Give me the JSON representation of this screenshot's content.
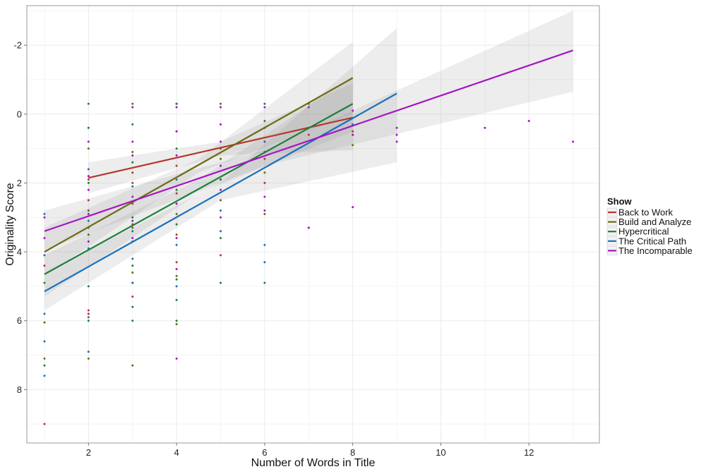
{
  "chart_data": {
    "type": "scatter",
    "title": "",
    "xlabel": "Number of Words in Title",
    "ylabel": "Originality Score",
    "xlim": [
      0.6,
      13.6
    ],
    "ylim": [
      9.55,
      -3.15
    ],
    "y_reversed": true,
    "x_ticks": [
      2,
      4,
      6,
      8,
      10,
      12
    ],
    "y_ticks": [
      -2,
      0,
      2,
      4,
      6,
      8
    ],
    "x_tick_labels": [
      "2",
      "4",
      "6",
      "8",
      "10",
      "12"
    ],
    "y_tick_labels": [
      "-2",
      "0",
      "2",
      "4",
      "6",
      "8"
    ],
    "grid": true,
    "legend": {
      "title": "Show",
      "position": "right",
      "entries": [
        "Back to Work",
        "Build and Analyze",
        "Hypercritical",
        "The Critical Path",
        "The Incomparable"
      ]
    },
    "series": [
      {
        "name": "Back to Work",
        "color": "#B5372D",
        "fit": {
          "x_start": 2,
          "x_end": 8,
          "y_start": 1.85,
          "y_end": 0.1
        },
        "confidence_band": [
          {
            "x": 2,
            "lower": 1.4,
            "upper": 2.3
          },
          {
            "x": 5,
            "lower": 0.8,
            "upper": 1.2
          },
          {
            "x": 8,
            "lower": -0.9,
            "upper": 1.05
          }
        ],
        "points": [
          [
            1,
            4.4
          ],
          [
            1,
            9.0
          ],
          [
            2,
            5.7
          ],
          [
            2,
            2.5
          ],
          [
            2,
            1.9
          ],
          [
            3,
            1.7
          ],
          [
            3,
            2.0
          ],
          [
            3,
            3.2
          ],
          [
            3,
            5.3
          ],
          [
            4,
            1.5
          ],
          [
            4,
            2.3
          ],
          [
            4,
            3.5
          ],
          [
            4,
            4.3
          ],
          [
            5,
            1.0
          ],
          [
            5,
            1.9
          ],
          [
            5,
            4.1
          ],
          [
            6,
            1.3
          ],
          [
            6,
            2.0
          ],
          [
            6,
            2.9
          ],
          [
            7,
            3.3
          ],
          [
            7,
            0.6
          ],
          [
            8,
            0.5
          ]
        ]
      },
      {
        "name": "Build and Analyze",
        "color": "#6B6B12",
        "fit": {
          "x_start": 1,
          "x_end": 8,
          "y_start": 4.0,
          "y_end": -1.05
        },
        "confidence_band": [
          {
            "x": 1,
            "lower": 3.3,
            "upper": 4.7
          },
          {
            "x": 4.5,
            "lower": 1.3,
            "upper": 1.7
          },
          {
            "x": 8,
            "lower": -2.1,
            "upper": 0.0
          }
        ],
        "points": [
          [
            1,
            6.05
          ],
          [
            1,
            7.1
          ],
          [
            2,
            1.0
          ],
          [
            2,
            2.8
          ],
          [
            2,
            3.3
          ],
          [
            2,
            5.9
          ],
          [
            2,
            7.1
          ],
          [
            3,
            -0.3
          ],
          [
            3,
            1.1
          ],
          [
            3,
            2.6
          ],
          [
            3,
            3.3
          ],
          [
            3,
            4.6
          ],
          [
            3,
            7.3
          ],
          [
            4,
            -0.3
          ],
          [
            4,
            0.5
          ],
          [
            4,
            2.9
          ],
          [
            4,
            4.7
          ],
          [
            4,
            6.1
          ],
          [
            5,
            -0.3
          ],
          [
            5,
            1.3
          ],
          [
            5,
            2.5
          ],
          [
            6,
            0.2
          ],
          [
            6,
            1.7
          ],
          [
            7,
            -0.3
          ],
          [
            8,
            0.9
          ]
        ]
      },
      {
        "name": "Hypercritical",
        "color": "#1E7F3C",
        "fit": {
          "x_start": 1,
          "x_end": 8,
          "y_start": 4.65,
          "y_end": -0.3
        },
        "confidence_band": [
          {
            "x": 1,
            "lower": 4.1,
            "upper": 5.3
          },
          {
            "x": 4.5,
            "lower": 1.9,
            "upper": 2.3
          },
          {
            "x": 8,
            "lower": -1.1,
            "upper": 0.5
          }
        ],
        "points": [
          [
            1,
            4.9
          ],
          [
            1,
            7.3
          ],
          [
            2,
            -0.3
          ],
          [
            2,
            0.4
          ],
          [
            2,
            2.0
          ],
          [
            2,
            3.5
          ],
          [
            2,
            5.0
          ],
          [
            2,
            6.0
          ],
          [
            3,
            0.3
          ],
          [
            3,
            1.4
          ],
          [
            3,
            3.0
          ],
          [
            3,
            3.7
          ],
          [
            3,
            4.4
          ],
          [
            3,
            4.9
          ],
          [
            3,
            5.6
          ],
          [
            3,
            6.0
          ],
          [
            4,
            -0.3
          ],
          [
            4,
            1.0
          ],
          [
            4,
            2.2
          ],
          [
            4,
            3.2
          ],
          [
            4,
            4.8
          ],
          [
            4,
            5.4
          ],
          [
            4,
            6.0
          ],
          [
            5,
            1.9
          ],
          [
            5,
            3.6
          ],
          [
            5,
            4.9
          ],
          [
            6,
            -0.3
          ],
          [
            6,
            0.8
          ],
          [
            6,
            4.9
          ],
          [
            8,
            0.6
          ]
        ]
      },
      {
        "name": "The Critical Path",
        "color": "#1A72BB",
        "fit": {
          "x_start": 1,
          "x_end": 9,
          "y_start": 5.15,
          "y_end": -0.6
        },
        "confidence_band": [
          {
            "x": 1,
            "lower": 4.6,
            "upper": 5.7
          },
          {
            "x": 5,
            "lower": 2.0,
            "upper": 2.5
          },
          {
            "x": 9,
            "lower": -2.5,
            "upper": 1.4
          }
        ],
        "points": [
          [
            1,
            2.9
          ],
          [
            1,
            4.1
          ],
          [
            1,
            5.8
          ],
          [
            1,
            6.6
          ],
          [
            1,
            7.6
          ],
          [
            2,
            1.6
          ],
          [
            2,
            3.1
          ],
          [
            2,
            3.9
          ],
          [
            2,
            6.9
          ],
          [
            3,
            2.1
          ],
          [
            3,
            3.4
          ],
          [
            3,
            4.2
          ],
          [
            3,
            4.9
          ],
          [
            4,
            1.9
          ],
          [
            4,
            2.6
          ],
          [
            4,
            3.8
          ],
          [
            4,
            5.0
          ],
          [
            5,
            2.8
          ],
          [
            5,
            3.4
          ],
          [
            6,
            0.8
          ],
          [
            6,
            3.8
          ],
          [
            6,
            4.3
          ],
          [
            8,
            0.3
          ]
        ]
      },
      {
        "name": "The Incomparable",
        "color": "#A515C2",
        "fit": {
          "x_start": 1,
          "x_end": 13,
          "y_start": 3.4,
          "y_end": -1.85
        },
        "confidence_band": [
          {
            "x": 1,
            "lower": 2.8,
            "upper": 3.95
          },
          {
            "x": 6,
            "lower": 1.05,
            "upper": 1.5
          },
          {
            "x": 13,
            "lower": -3.0,
            "upper": -0.65
          }
        ],
        "points": [
          [
            1,
            3.0
          ],
          [
            1,
            3.6
          ],
          [
            2,
            0.8
          ],
          [
            2,
            1.8
          ],
          [
            2,
            2.2
          ],
          [
            2,
            2.9
          ],
          [
            2,
            3.7
          ],
          [
            2,
            5.8
          ],
          [
            3,
            -0.2
          ],
          [
            3,
            0.8
          ],
          [
            3,
            1.2
          ],
          [
            3,
            2.4
          ],
          [
            3,
            3.1
          ],
          [
            3,
            3.6
          ],
          [
            4,
            -0.2
          ],
          [
            4,
            0.5
          ],
          [
            4,
            1.2
          ],
          [
            4,
            2.6
          ],
          [
            4,
            3.6
          ],
          [
            4,
            4.5
          ],
          [
            4,
            7.1
          ],
          [
            5,
            -0.2
          ],
          [
            5,
            0.3
          ],
          [
            5,
            0.8
          ],
          [
            5,
            1.5
          ],
          [
            5,
            2.2
          ],
          [
            5,
            3.0
          ],
          [
            6,
            -0.2
          ],
          [
            6,
            0.4
          ],
          [
            6,
            1.1
          ],
          [
            6,
            2.4
          ],
          [
            6,
            2.8
          ],
          [
            7,
            -0.2
          ],
          [
            7,
            0.4
          ],
          [
            7,
            3.3
          ],
          [
            8,
            -0.1
          ],
          [
            8,
            0.6
          ],
          [
            8,
            2.7
          ],
          [
            9,
            0.4
          ],
          [
            9,
            0.6
          ],
          [
            9,
            0.8
          ],
          [
            11,
            0.4
          ],
          [
            12,
            0.2
          ],
          [
            13,
            0.8
          ]
        ]
      }
    ]
  }
}
